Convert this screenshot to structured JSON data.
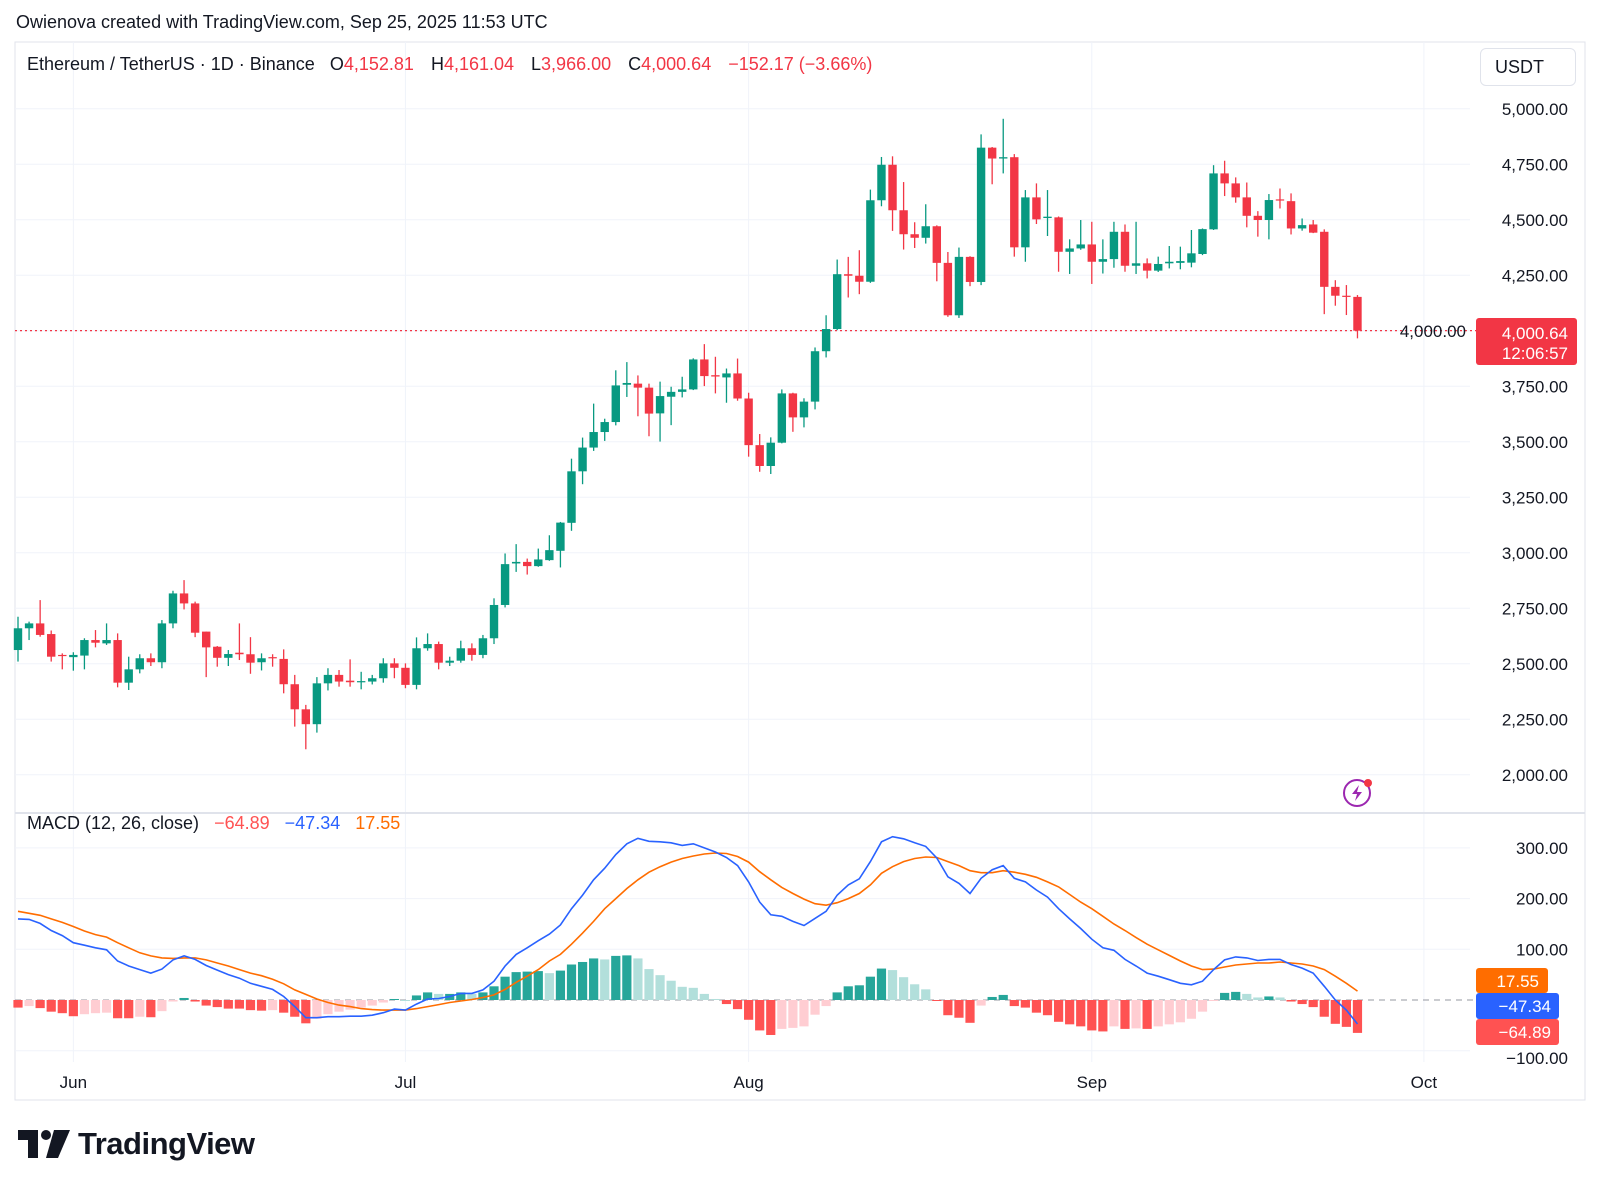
{
  "attribution": "Owienova created with TradingView.com, Sep 25, 2025 11:53 UTC",
  "legend": {
    "symbol": "Ethereum / TetherUS · 1D · Binance",
    "o_label": "O",
    "o": "4,152.81",
    "h_label": "H",
    "h": "4,161.04",
    "l_label": "L",
    "l": "3,966.00",
    "c_label": "C",
    "c": "4,000.64",
    "change": "−152.17 (−3.66%)"
  },
  "currency": "USDT",
  "last_price": {
    "price": "4,000.64",
    "countdown": "12:06:57"
  },
  "macd_legend": {
    "title": "MACD (12, 26, close)",
    "histogram": "−64.89",
    "macd": "−47.34",
    "signal": "17.55"
  },
  "footer": {
    "brand": "TradingView"
  },
  "colors": {
    "up": "#089981",
    "down": "#F23645",
    "macd": "#2962FF",
    "signal": "#FF6D00",
    "hist_up_strong": "#26A69A",
    "hist_up_weak": "#B2DFDB",
    "hist_down_strong": "#FF5252",
    "hist_down_weak": "#FFCDD2"
  },
  "chart_data": [
    {
      "type": "candlestick",
      "title": "Ethereum / TetherUS · 1D · Binance",
      "ylim": [
        2000,
        5000
      ],
      "y_ticks": [
        "5,000.00",
        "4,750.00",
        "4,500.00",
        "4,250.00",
        "4,000.00",
        "3,750.00",
        "3,500.00",
        "3,250.00",
        "3,000.00",
        "2,750.00",
        "2,500.00",
        "2,250.00",
        "2,000.00"
      ],
      "y_tick_values": [
        5000,
        4750,
        4500,
        4250,
        4000,
        3750,
        3500,
        3250,
        3000,
        2750,
        2500,
        2250,
        2000
      ],
      "x_ticks": [
        {
          "label": "Jun",
          "date": "2025-06-01"
        },
        {
          "label": "Jul",
          "date": "2025-07-01"
        },
        {
          "label": "Aug",
          "date": "2025-08-01"
        },
        {
          "label": "Sep",
          "date": "2025-09-01"
        },
        {
          "label": "Oct",
          "date": "2025-10-01"
        }
      ],
      "grid": true,
      "last_close": 4000.64,
      "candles": [
        [
          "2025-05-27",
          2562,
          2712,
          2510,
          2660
        ],
        [
          "2025-05-28",
          2660,
          2690,
          2607,
          2682
        ],
        [
          "2025-05-29",
          2682,
          2787,
          2622,
          2630
        ],
        [
          "2025-05-30",
          2634,
          2650,
          2510,
          2532
        ],
        [
          "2025-05-31",
          2540,
          2547,
          2475,
          2535
        ],
        [
          "2025-06-01",
          2530,
          2552,
          2469,
          2540
        ],
        [
          "2025-06-02",
          2537,
          2615,
          2475,
          2607
        ],
        [
          "2025-06-03",
          2607,
          2652,
          2574,
          2595
        ],
        [
          "2025-06-04",
          2592,
          2682,
          2585,
          2607
        ],
        [
          "2025-06-05",
          2607,
          2637,
          2394,
          2415
        ],
        [
          "2025-06-06",
          2415,
          2532,
          2382,
          2475
        ],
        [
          "2025-06-07",
          2475,
          2543,
          2457,
          2525
        ],
        [
          "2025-06-08",
          2525,
          2547,
          2490,
          2507
        ],
        [
          "2025-06-09",
          2507,
          2697,
          2480,
          2682
        ],
        [
          "2025-06-10",
          2682,
          2829,
          2660,
          2817
        ],
        [
          "2025-06-11",
          2817,
          2877,
          2745,
          2772
        ],
        [
          "2025-06-12",
          2772,
          2780,
          2620,
          2640
        ],
        [
          "2025-06-13",
          2645,
          2645,
          2440,
          2574
        ],
        [
          "2025-06-14",
          2577,
          2580,
          2487,
          2527
        ],
        [
          "2025-06-15",
          2527,
          2562,
          2490,
          2544
        ],
        [
          "2025-06-16",
          2550,
          2682,
          2517,
          2543
        ],
        [
          "2025-06-17",
          2543,
          2620,
          2455,
          2505
        ],
        [
          "2025-06-18",
          2507,
          2547,
          2470,
          2525
        ],
        [
          "2025-06-19",
          2530,
          2543,
          2487,
          2525
        ],
        [
          "2025-06-20",
          2522,
          2565,
          2367,
          2408
        ],
        [
          "2025-06-21",
          2408,
          2450,
          2217,
          2295
        ],
        [
          "2025-06-22",
          2295,
          2315,
          2115,
          2228
        ],
        [
          "2025-06-23",
          2228,
          2440,
          2190,
          2412
        ],
        [
          "2025-06-24",
          2412,
          2480,
          2380,
          2450
        ],
        [
          "2025-06-25",
          2450,
          2472,
          2397,
          2420
        ],
        [
          "2025-06-26",
          2424,
          2520,
          2397,
          2417
        ],
        [
          "2025-06-27",
          2417,
          2464,
          2385,
          2422
        ],
        [
          "2025-06-28",
          2420,
          2450,
          2407,
          2435
        ],
        [
          "2025-06-29",
          2435,
          2525,
          2415,
          2502
        ],
        [
          "2025-06-30",
          2502,
          2525,
          2435,
          2482
        ],
        [
          "2025-07-01",
          2482,
          2502,
          2390,
          2405
        ],
        [
          "2025-07-02",
          2405,
          2619,
          2385,
          2570
        ],
        [
          "2025-07-03",
          2570,
          2637,
          2559,
          2589
        ],
        [
          "2025-07-04",
          2589,
          2600,
          2475,
          2505
        ],
        [
          "2025-07-05",
          2505,
          2532,
          2490,
          2514
        ],
        [
          "2025-07-06",
          2514,
          2604,
          2505,
          2570
        ],
        [
          "2025-07-07",
          2570,
          2592,
          2514,
          2540
        ],
        [
          "2025-07-08",
          2540,
          2630,
          2525,
          2615
        ],
        [
          "2025-07-09",
          2615,
          2795,
          2589,
          2765
        ],
        [
          "2025-07-10",
          2765,
          2997,
          2754,
          2949
        ],
        [
          "2025-07-11",
          2952,
          3039,
          2914,
          2959
        ],
        [
          "2025-07-12",
          2959,
          2974,
          2902,
          2940
        ],
        [
          "2025-07-13",
          2940,
          3019,
          2937,
          2970
        ],
        [
          "2025-07-14",
          2967,
          3079,
          2964,
          3012
        ],
        [
          "2025-07-15",
          3009,
          3139,
          2934,
          3136
        ],
        [
          "2025-07-16",
          3135,
          3424,
          3099,
          3367
        ],
        [
          "2025-07-17",
          3367,
          3519,
          3309,
          3474
        ],
        [
          "2025-07-18",
          3474,
          3672,
          3459,
          3544
        ],
        [
          "2025-07-19",
          3544,
          3604,
          3504,
          3589
        ],
        [
          "2025-07-20",
          3589,
          3822,
          3574,
          3754
        ],
        [
          "2025-07-21",
          3757,
          3859,
          3702,
          3765
        ],
        [
          "2025-07-22",
          3762,
          3799,
          3615,
          3744
        ],
        [
          "2025-07-23",
          3744,
          3762,
          3525,
          3627
        ],
        [
          "2025-07-24",
          3628,
          3771,
          3501,
          3706
        ],
        [
          "2025-07-25",
          3703,
          3748,
          3575,
          3725
        ],
        [
          "2025-07-26",
          3725,
          3793,
          3700,
          3736
        ],
        [
          "2025-07-27",
          3736,
          3876,
          3733,
          3871
        ],
        [
          "2025-07-28",
          3871,
          3940,
          3751,
          3796
        ],
        [
          "2025-07-29",
          3800,
          3883,
          3718,
          3794
        ],
        [
          "2025-07-30",
          3790,
          3830,
          3676,
          3808
        ],
        [
          "2025-07-31",
          3808,
          3875,
          3685,
          3695
        ],
        [
          "2025-08-01",
          3695,
          3721,
          3433,
          3485
        ],
        [
          "2025-08-02",
          3485,
          3535,
          3365,
          3391
        ],
        [
          "2025-08-03",
          3391,
          3520,
          3355,
          3496
        ],
        [
          "2025-08-04",
          3496,
          3736,
          3493,
          3718
        ],
        [
          "2025-08-05",
          3718,
          3721,
          3545,
          3610
        ],
        [
          "2025-08-06",
          3610,
          3696,
          3565,
          3681
        ],
        [
          "2025-08-07",
          3681,
          3925,
          3646,
          3908
        ],
        [
          "2025-08-08",
          3908,
          4070,
          3880,
          4008
        ],
        [
          "2025-08-09",
          4008,
          4321,
          4003,
          4255
        ],
        [
          "2025-08-10",
          4255,
          4333,
          4150,
          4248
        ],
        [
          "2025-08-11",
          4248,
          4363,
          4165,
          4221
        ],
        [
          "2025-08-12",
          4221,
          4636,
          4216,
          4588
        ],
        [
          "2025-08-13",
          4588,
          4783,
          4561,
          4748
        ],
        [
          "2025-08-14",
          4748,
          4786,
          4450,
          4543
        ],
        [
          "2025-08-15",
          4543,
          4670,
          4366,
          4435
        ],
        [
          "2025-08-16",
          4435,
          4489,
          4373,
          4419
        ],
        [
          "2025-08-17",
          4419,
          4570,
          4393,
          4471
        ],
        [
          "2025-08-18",
          4471,
          4475,
          4223,
          4306
        ],
        [
          "2025-08-19",
          4306,
          4355,
          4063,
          4070
        ],
        [
          "2025-08-20",
          4070,
          4375,
          4058,
          4333
        ],
        [
          "2025-08-21",
          4333,
          4336,
          4201,
          4220
        ],
        [
          "2025-08-22",
          4220,
          4885,
          4206,
          4825
        ],
        [
          "2025-08-23",
          4825,
          4828,
          4660,
          4776
        ],
        [
          "2025-08-24",
          4776,
          4955,
          4709,
          4782
        ],
        [
          "2025-08-25",
          4782,
          4796,
          4334,
          4376
        ],
        [
          "2025-08-26",
          4376,
          4634,
          4311,
          4601
        ],
        [
          "2025-08-27",
          4601,
          4664,
          4481,
          4502
        ],
        [
          "2025-08-28",
          4508,
          4634,
          4427,
          4514
        ],
        [
          "2025-08-29",
          4511,
          4515,
          4266,
          4356
        ],
        [
          "2025-08-30",
          4356,
          4412,
          4256,
          4371
        ],
        [
          "2025-08-31",
          4371,
          4499,
          4365,
          4389
        ],
        [
          "2025-09-01",
          4389,
          4491,
          4211,
          4311
        ],
        [
          "2025-09-02",
          4311,
          4412,
          4258,
          4323
        ],
        [
          "2025-09-03",
          4323,
          4491,
          4284,
          4446
        ],
        [
          "2025-09-04",
          4446,
          4479,
          4266,
          4293
        ],
        [
          "2025-09-05",
          4293,
          4491,
          4256,
          4304
        ],
        [
          "2025-09-06",
          4304,
          4326,
          4236,
          4271
        ],
        [
          "2025-09-07",
          4271,
          4334,
          4265,
          4301
        ],
        [
          "2025-09-08",
          4304,
          4382,
          4281,
          4311
        ],
        [
          "2025-09-09",
          4306,
          4379,
          4277,
          4314
        ],
        [
          "2025-09-10",
          4307,
          4454,
          4286,
          4349
        ],
        [
          "2025-09-11",
          4346,
          4461,
          4341,
          4458
        ],
        [
          "2025-09-12",
          4457,
          4746,
          4454,
          4709
        ],
        [
          "2025-09-13",
          4709,
          4766,
          4607,
          4664
        ],
        [
          "2025-09-14",
          4664,
          4691,
          4577,
          4601
        ],
        [
          "2025-09-15",
          4601,
          4668,
          4466,
          4518
        ],
        [
          "2025-09-16",
          4518,
          4539,
          4424,
          4499
        ],
        [
          "2025-09-17",
          4499,
          4616,
          4412,
          4589
        ],
        [
          "2025-09-18",
          4592,
          4641,
          4551,
          4589
        ],
        [
          "2025-09-19",
          4584,
          4619,
          4434,
          4461
        ],
        [
          "2025-09-20",
          4461,
          4506,
          4451,
          4476
        ],
        [
          "2025-09-21",
          4479,
          4499,
          4440,
          4442
        ],
        [
          "2025-09-22",
          4446,
          4457,
          4075,
          4198
        ],
        [
          "2025-09-23",
          4198,
          4228,
          4113,
          4158
        ],
        [
          "2025-09-24",
          4158,
          4206,
          4071,
          4152.81
        ],
        [
          "2025-09-25",
          4152.81,
          4161.04,
          3966.0,
          4000.64
        ]
      ]
    },
    {
      "type": "line",
      "title": "MACD (12, 26, close)",
      "ylim": [
        -120,
        330
      ],
      "y_ticks": [
        "300.00",
        "200.00",
        "100.00",
        "−100.00"
      ],
      "y_tick_values": [
        300,
        200,
        100,
        -100
      ],
      "series": [
        {
          "name": "MACD",
          "values": [
            160,
            159,
            151,
            137,
            127,
            113,
            108,
            103,
            99,
            77,
            67,
            60,
            53,
            61,
            79,
            87,
            80,
            68,
            59,
            50,
            43,
            33,
            27,
            21,
            7,
            -13,
            -35,
            -35,
            -33,
            -33,
            -32,
            -32,
            -30,
            -25,
            -18,
            -20,
            -8,
            2,
            3,
            7,
            13,
            13,
            20,
            37,
            67,
            90,
            103,
            117,
            130,
            148,
            180,
            207,
            237,
            260,
            287,
            308,
            319,
            313,
            312,
            310,
            305,
            308,
            300,
            292,
            281,
            265,
            233,
            193,
            168,
            165,
            155,
            147,
            161,
            175,
            207,
            227,
            239,
            273,
            312,
            322,
            318,
            310,
            303,
            280,
            243,
            230,
            210,
            240,
            257,
            265,
            240,
            233,
            217,
            203,
            180,
            160,
            141,
            120,
            103,
            98,
            80,
            67,
            53,
            47,
            40,
            33,
            30,
            37,
            60,
            79,
            85,
            83,
            78,
            80,
            80,
            70,
            63,
            53,
            27,
            0,
            -20,
            -47.34
          ]
        },
        {
          "name": "Signal",
          "values": [
            175,
            171,
            167,
            160,
            153,
            145,
            136,
            129,
            124,
            113,
            103,
            93,
            87,
            83,
            82,
            83,
            83,
            79,
            73,
            67,
            60,
            53,
            48,
            41,
            32,
            20,
            11,
            2,
            -5,
            -10,
            -13,
            -17,
            -19,
            -20,
            -20,
            -20,
            -17,
            -13,
            -9,
            -5,
            -2,
            1,
            5,
            10,
            21,
            35,
            47,
            60,
            77,
            90,
            110,
            132,
            155,
            180,
            200,
            220,
            237,
            252,
            263,
            272,
            279,
            284,
            288,
            290,
            289,
            283,
            272,
            253,
            237,
            222,
            210,
            199,
            190,
            187,
            192,
            200,
            210,
            227,
            250,
            263,
            273,
            279,
            282,
            281,
            273,
            265,
            255,
            251,
            251,
            255,
            252,
            248,
            242,
            233,
            223,
            208,
            193,
            180,
            165,
            150,
            137,
            123,
            110,
            99,
            88,
            77,
            67,
            60,
            61,
            65,
            69,
            71,
            73,
            73,
            75,
            73,
            71,
            67,
            60,
            47,
            33,
            17.55
          ]
        }
      ],
      "histogram_last": -64.89,
      "labels": {
        "histogram": "−64.89",
        "macd": "−47.34",
        "signal": "17.55"
      }
    }
  ]
}
